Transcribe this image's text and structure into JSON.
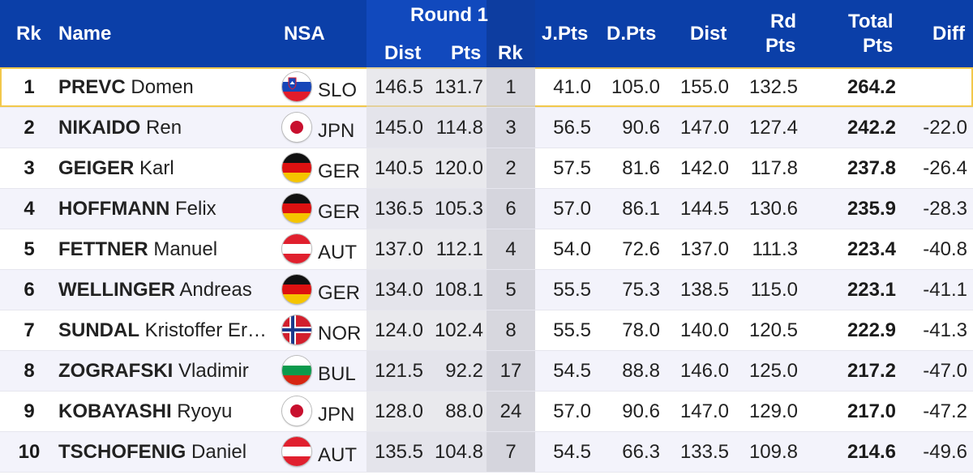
{
  "header": {
    "rk": "Rk",
    "name": "Name",
    "nsa": "NSA",
    "round_title": "Round 1",
    "r_dist": "Dist",
    "r_pts": "Pts",
    "r_rk": "Rk",
    "jpts": "J.Pts",
    "dpts": "D.Pts",
    "dist": "Dist",
    "rdpts_line1": "Rd",
    "rdpts_line2": "Pts",
    "total_line1": "Total",
    "total_line2": "Pts",
    "diff": "Diff"
  },
  "rows": [
    {
      "rk": "1",
      "last": "PREVC",
      "first": "Domen",
      "nsa": "SLO",
      "flag": "slo-flag-icon",
      "r_dist": "146.5",
      "r_pts": "131.7",
      "r_rk": "1",
      "jpts": "41.0",
      "dpts": "105.0",
      "dist": "155.0",
      "rdpts": "132.5",
      "total": "264.2",
      "diff": ""
    },
    {
      "rk": "2",
      "last": "NIKAIDO",
      "first": "Ren",
      "nsa": "JPN",
      "flag": "jpn-flag-icon",
      "r_dist": "145.0",
      "r_pts": "114.8",
      "r_rk": "3",
      "jpts": "56.5",
      "dpts": "90.6",
      "dist": "147.0",
      "rdpts": "127.4",
      "total": "242.2",
      "diff": "-22.0"
    },
    {
      "rk": "3",
      "last": "GEIGER",
      "first": "Karl",
      "nsa": "GER",
      "flag": "ger-flag-icon",
      "r_dist": "140.5",
      "r_pts": "120.0",
      "r_rk": "2",
      "jpts": "57.5",
      "dpts": "81.6",
      "dist": "142.0",
      "rdpts": "117.8",
      "total": "237.8",
      "diff": "-26.4"
    },
    {
      "rk": "4",
      "last": "HOFFMANN",
      "first": "Felix",
      "nsa": "GER",
      "flag": "ger-flag-icon",
      "r_dist": "136.5",
      "r_pts": "105.3",
      "r_rk": "6",
      "jpts": "57.0",
      "dpts": "86.1",
      "dist": "144.5",
      "rdpts": "130.6",
      "total": "235.9",
      "diff": "-28.3"
    },
    {
      "rk": "5",
      "last": "FETTNER",
      "first": "Manuel",
      "nsa": "AUT",
      "flag": "aut-flag-icon",
      "r_dist": "137.0",
      "r_pts": "112.1",
      "r_rk": "4",
      "jpts": "54.0",
      "dpts": "72.6",
      "dist": "137.0",
      "rdpts": "111.3",
      "total": "223.4",
      "diff": "-40.8"
    },
    {
      "rk": "6",
      "last": "WELLINGER",
      "first": "Andreas",
      "nsa": "GER",
      "flag": "ger-flag-icon",
      "r_dist": "134.0",
      "r_pts": "108.1",
      "r_rk": "5",
      "jpts": "55.5",
      "dpts": "75.3",
      "dist": "138.5",
      "rdpts": "115.0",
      "total": "223.1",
      "diff": "-41.1"
    },
    {
      "rk": "7",
      "last": "SUNDAL",
      "first": "Kristoffer Er…",
      "nsa": "NOR",
      "flag": "nor-flag-icon",
      "r_dist": "124.0",
      "r_pts": "102.4",
      "r_rk": "8",
      "jpts": "55.5",
      "dpts": "78.0",
      "dist": "140.0",
      "rdpts": "120.5",
      "total": "222.9",
      "diff": "-41.3"
    },
    {
      "rk": "8",
      "last": "ZOGRAFSKI",
      "first": "Vladimir",
      "nsa": "BUL",
      "flag": "bul-flag-icon",
      "r_dist": "121.5",
      "r_pts": "92.2",
      "r_rk": "17",
      "jpts": "54.5",
      "dpts": "88.8",
      "dist": "146.0",
      "rdpts": "125.0",
      "total": "217.2",
      "diff": "-47.0"
    },
    {
      "rk": "9",
      "last": "KOBAYASHI",
      "first": "Ryoyu",
      "nsa": "JPN",
      "flag": "jpn-flag-icon",
      "r_dist": "128.0",
      "r_pts": "88.0",
      "r_rk": "24",
      "jpts": "57.0",
      "dpts": "90.6",
      "dist": "147.0",
      "rdpts": "129.0",
      "total": "217.0",
      "diff": "-47.2"
    },
    {
      "rk": "10",
      "last": "TSCHOFENIG",
      "first": "Daniel",
      "nsa": "AUT",
      "flag": "aut-flag-icon",
      "r_dist": "135.5",
      "r_pts": "104.8",
      "r_rk": "7",
      "jpts": "54.5",
      "dpts": "66.3",
      "dist": "133.5",
      "rdpts": "109.8",
      "total": "214.6",
      "diff": "-49.6"
    }
  ],
  "colors": {
    "header_bg": "#0b3fa8",
    "highlight_border": "#f2c84b",
    "alt_row": "#f3f3fb"
  }
}
